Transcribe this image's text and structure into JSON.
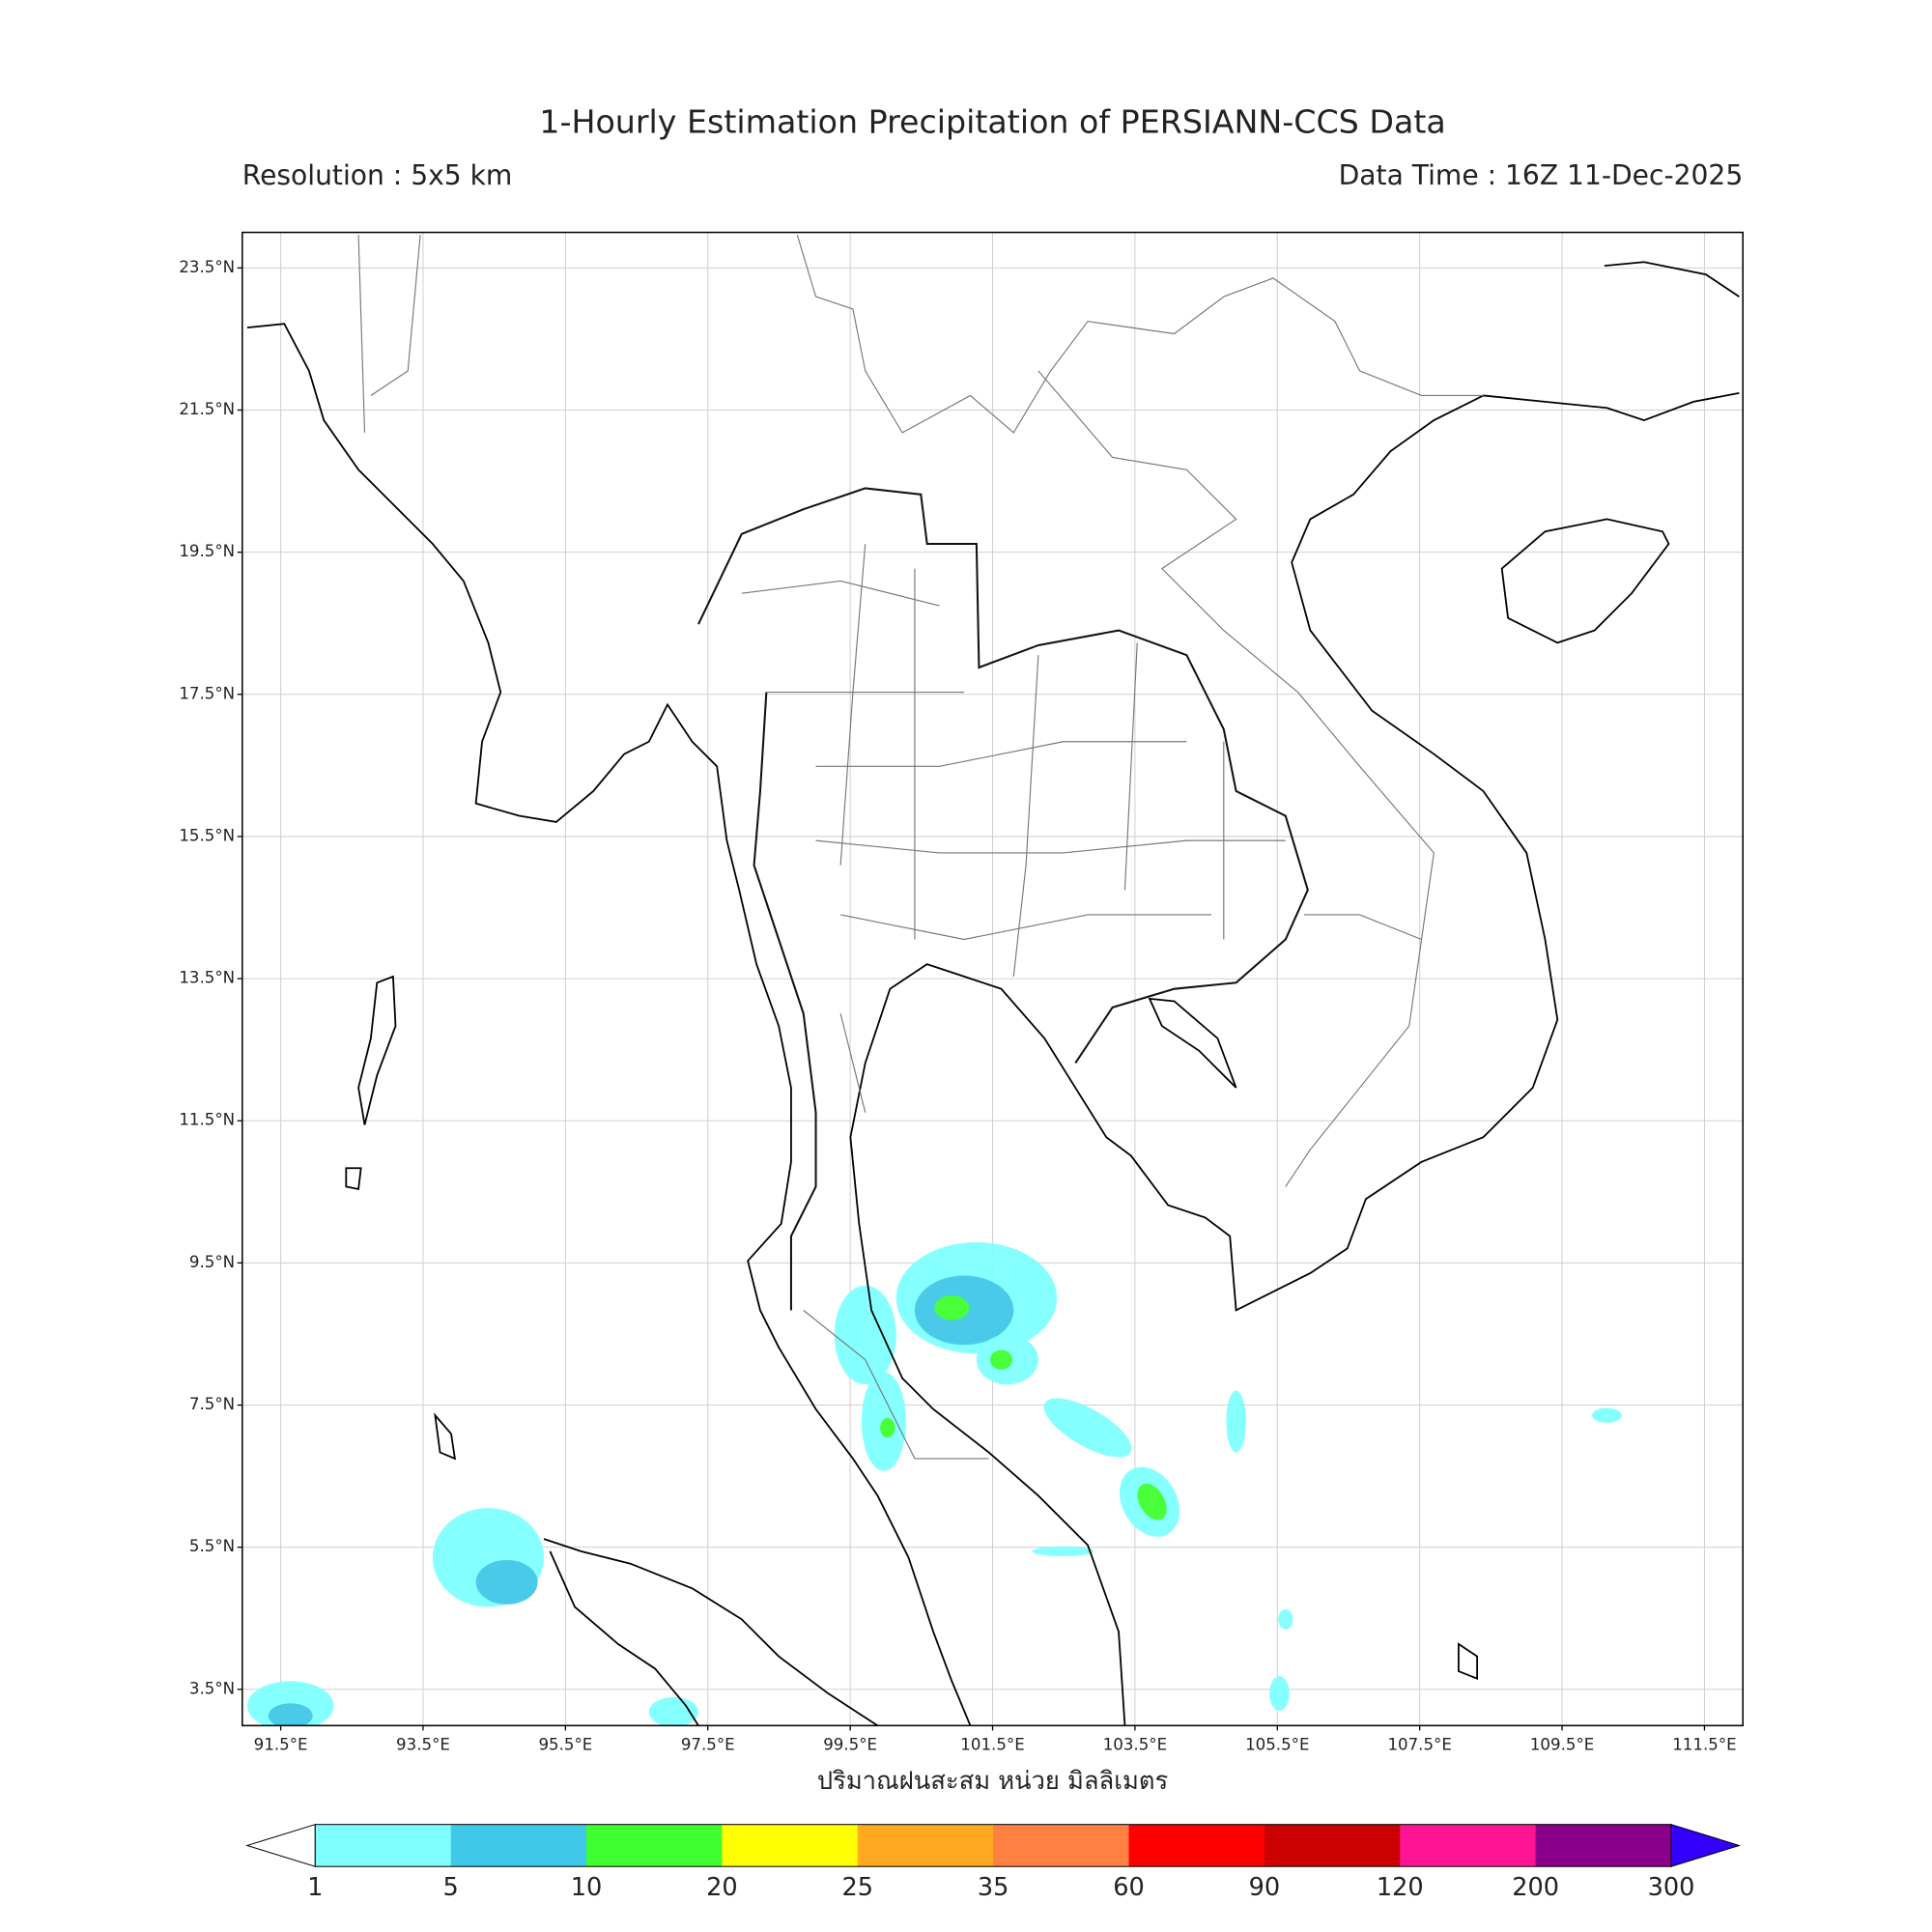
{
  "chart_data": {
    "type": "map",
    "title": "1-Hourly Estimation Precipitation of PERSIANN-CCS Data",
    "subtitle_left": "Resolution : 5x5 km",
    "subtitle_right": "Data Time : 16Z 11-Dec-2025",
    "x_label": "ปริมาณฝนสะสม หน่วย มิลลิเมตร",
    "xlim": [
      90.96,
      112.04
    ],
    "ylim": [
      2.99,
      24.0
    ],
    "grid": true,
    "xticks": [
      {
        "value": 91.5,
        "label": "91.5°E"
      },
      {
        "value": 93.5,
        "label": "93.5°E"
      },
      {
        "value": 95.5,
        "label": "95.5°E"
      },
      {
        "value": 97.5,
        "label": "97.5°E"
      },
      {
        "value": 99.5,
        "label": "99.5°E"
      },
      {
        "value": 101.5,
        "label": "101.5°E"
      },
      {
        "value": 103.5,
        "label": "103.5°E"
      },
      {
        "value": 105.5,
        "label": "105.5°E"
      },
      {
        "value": 107.5,
        "label": "107.5°E"
      },
      {
        "value": 109.5,
        "label": "109.5°E"
      },
      {
        "value": 111.5,
        "label": "111.5°E"
      }
    ],
    "yticks": [
      {
        "value": 23.5,
        "label": "23.5°N"
      },
      {
        "value": 21.5,
        "label": "21.5°N"
      },
      {
        "value": 19.5,
        "label": "19.5°N"
      },
      {
        "value": 17.5,
        "label": "17.5°N"
      },
      {
        "value": 15.5,
        "label": "15.5°N"
      },
      {
        "value": 13.5,
        "label": "13.5°N"
      },
      {
        "value": 11.5,
        "label": "11.5°N"
      },
      {
        "value": 9.5,
        "label": "9.5°N"
      },
      {
        "value": 7.5,
        "label": "7.5°N"
      },
      {
        "value": 5.5,
        "label": "5.5°N"
      },
      {
        "value": 3.5,
        "label": "3.5°N"
      }
    ],
    "colorbar": {
      "levels": [
        1,
        5,
        10,
        20,
        25,
        35,
        60,
        90,
        120,
        200,
        300
      ],
      "colors": [
        "#80ffff",
        "#40c8e8",
        "#40ff30",
        "#ffff00",
        "#ffa820",
        "#ff8040",
        "#ff0000",
        "#cc0000",
        "#ff1493",
        "#8b008b"
      ],
      "under_color": "#ffffff",
      "over_color": "#3300ff"
    }
  }
}
